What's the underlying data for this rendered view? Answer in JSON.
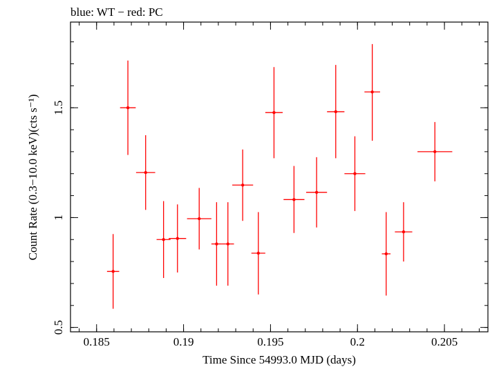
{
  "chart_data": {
    "type": "scatter",
    "title": "blue: WT − red: PC",
    "xlabel": "Time Since 54993.0 MJD (days)",
    "ylabel": "Count Rate (0.3−10.0 keV)(cts s⁻¹)",
    "xlim": [
      0.1835,
      0.2075
    ],
    "ylim": [
      0.48,
      1.89
    ],
    "x_ticks": [
      0.185,
      0.19,
      0.195,
      0.2,
      0.205
    ],
    "x_tick_labels": [
      "0.185",
      "0.19",
      "0.195",
      "0.2",
      "0.205"
    ],
    "y_ticks": [
      0.5,
      1,
      1.5
    ],
    "y_tick_labels": [
      "0.5",
      "1",
      "1.5"
    ],
    "grid": false,
    "series": [
      {
        "color": "#ff0000",
        "points": [
          {
            "x": 0.18595,
            "y": 0.755,
            "xerr": 0.00035,
            "ylo": 0.585,
            "yhi": 0.925
          },
          {
            "x": 0.1868,
            "y": 1.5,
            "xerr": 0.00045,
            "ylo": 1.285,
            "yhi": 1.715
          },
          {
            "x": 0.18782,
            "y": 1.205,
            "xerr": 0.00055,
            "ylo": 1.035,
            "yhi": 1.375
          },
          {
            "x": 0.18885,
            "y": 0.9,
            "xerr": 0.0004,
            "ylo": 0.725,
            "yhi": 1.075
          },
          {
            "x": 0.18965,
            "y": 0.905,
            "xerr": 0.0005,
            "ylo": 0.75,
            "yhi": 1.06
          },
          {
            "x": 0.1909,
            "y": 0.995,
            "xerr": 0.0007,
            "ylo": 0.855,
            "yhi": 1.135
          },
          {
            "x": 0.1919,
            "y": 0.88,
            "xerr": 0.0003,
            "ylo": 0.69,
            "yhi": 1.07
          },
          {
            "x": 0.19255,
            "y": 0.88,
            "xerr": 0.00035,
            "ylo": 0.69,
            "yhi": 1.07
          },
          {
            "x": 0.1934,
            "y": 1.148,
            "xerr": 0.0006,
            "ylo": 0.985,
            "yhi": 1.31
          },
          {
            "x": 0.1943,
            "y": 0.838,
            "xerr": 0.0004,
            "ylo": 0.65,
            "yhi": 1.025
          },
          {
            "x": 0.1952,
            "y": 1.478,
            "xerr": 0.0005,
            "ylo": 1.27,
            "yhi": 1.685
          },
          {
            "x": 0.19635,
            "y": 1.082,
            "xerr": 0.0006,
            "ylo": 0.93,
            "yhi": 1.235
          },
          {
            "x": 0.19765,
            "y": 1.115,
            "xerr": 0.0006,
            "ylo": 0.955,
            "yhi": 1.275
          },
          {
            "x": 0.19875,
            "y": 1.482,
            "xerr": 0.0005,
            "ylo": 1.27,
            "yhi": 1.695
          },
          {
            "x": 0.19985,
            "y": 1.2,
            "xerr": 0.0006,
            "ylo": 1.03,
            "yhi": 1.37
          },
          {
            "x": 0.20085,
            "y": 1.572,
            "xerr": 0.00045,
            "ylo": 1.35,
            "yhi": 1.79
          },
          {
            "x": 0.20165,
            "y": 0.835,
            "xerr": 0.00025,
            "ylo": 0.645,
            "yhi": 1.025
          },
          {
            "x": 0.20265,
            "y": 0.935,
            "xerr": 0.0005,
            "ylo": 0.8,
            "yhi": 1.07
          },
          {
            "x": 0.20445,
            "y": 1.3,
            "xerr": 0.001,
            "ylo": 1.165,
            "yhi": 1.435
          }
        ]
      }
    ]
  }
}
